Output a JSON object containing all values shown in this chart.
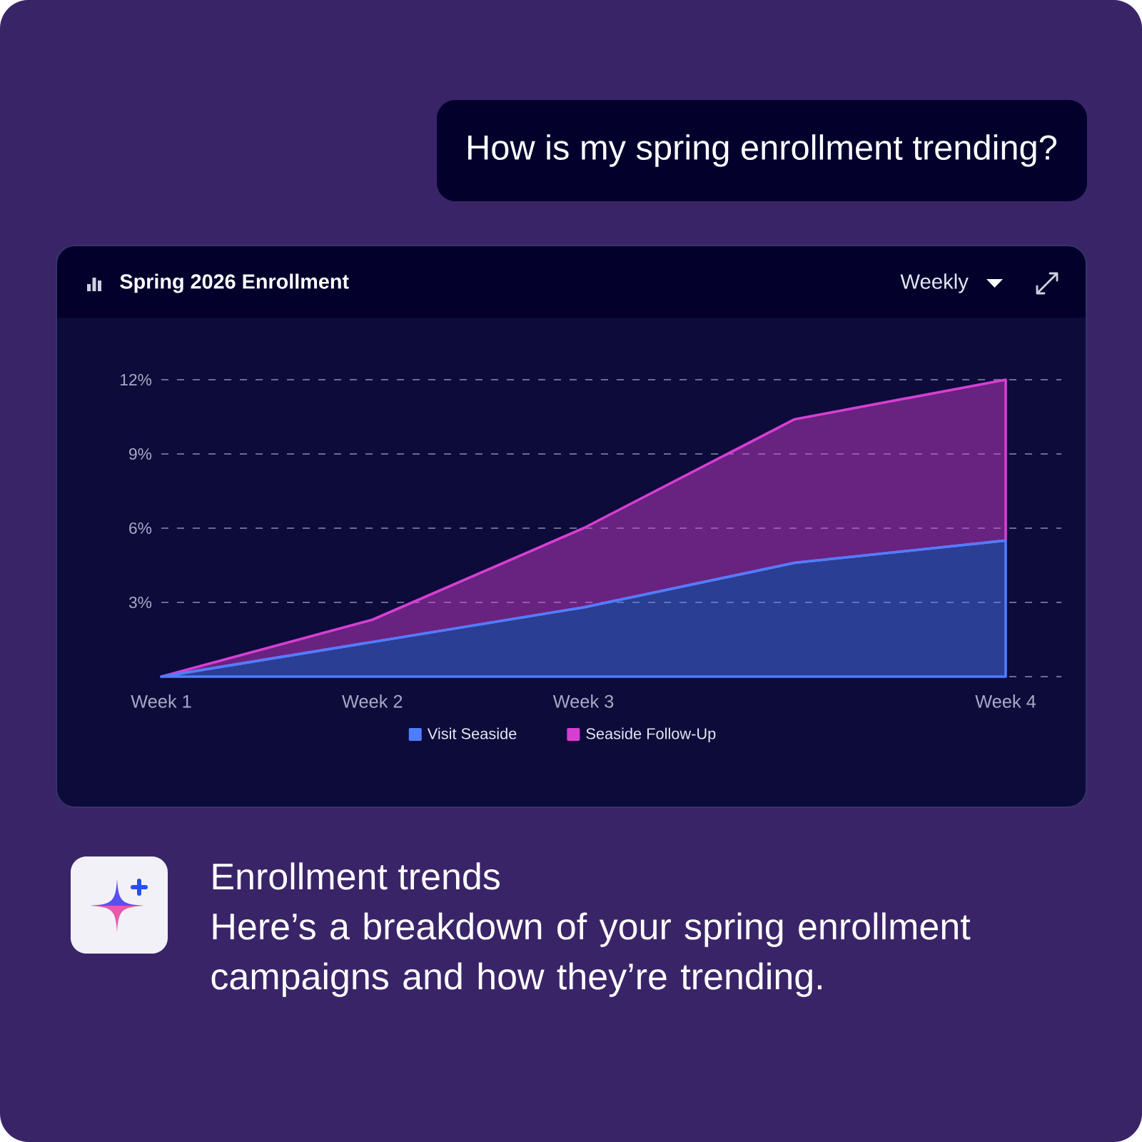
{
  "chart_data": {
    "type": "area",
    "title": "Spring 2026 Enrollment",
    "annotations": [
      "How is my spring enrollment trending?",
      "Weekly",
      "Enrollment trends",
      "Here’s a breakdown of your spring enrollment campaigns and how they’re trending."
    ],
    "categories": [
      "Week 1",
      "Week 2",
      "Week 3",
      null,
      "Week 4"
    ],
    "series": [
      {
        "name": "Seaside Follow-Up",
        "color": "#d63fd2",
        "values": [
          0,
          2.3,
          6,
          10.4,
          12
        ]
      },
      {
        "name": "Visit Seaside",
        "color": "#4f7dff",
        "values": [
          0,
          1.4,
          2.8,
          4.6,
          5.5
        ]
      }
    ],
    "ylim": [
      0,
      12
    ],
    "yticks": [
      {
        "value": 0,
        "label": null
      },
      {
        "value": 3,
        "label": "3%"
      },
      {
        "value": 6,
        "label": "6%"
      },
      {
        "value": 9,
        "label": "9%"
      },
      {
        "value": 12,
        "label": "12%"
      }
    ],
    "grid": "y",
    "legend": "bottom",
    "line_style": "solid"
  }
}
